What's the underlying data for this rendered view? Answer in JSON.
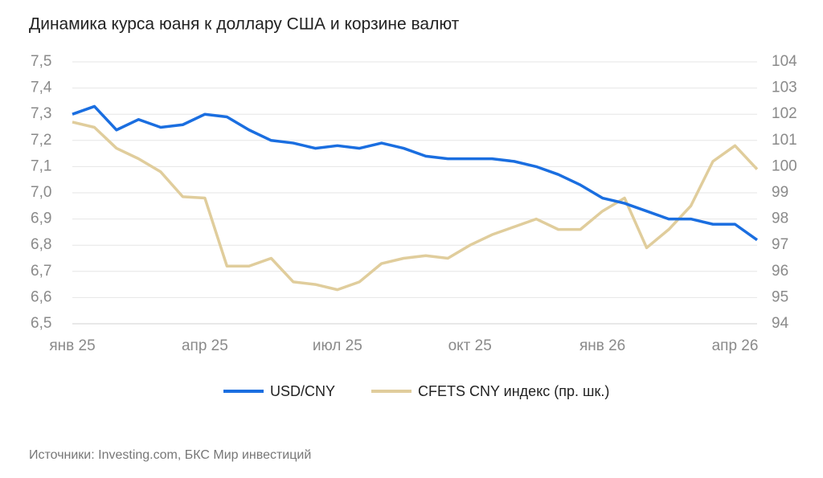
{
  "chart_data": {
    "type": "line",
    "title": "Динамика курса юаня к доллару США и корзине валют",
    "source": "Источники: Investing.com, БКС Мир инвестиций",
    "categories": [
      "янв 25",
      null,
      null,
      null,
      null,
      null,
      "апр 25",
      null,
      null,
      null,
      null,
      null,
      "июл 25",
      null,
      null,
      null,
      null,
      null,
      "окт 25",
      null,
      null,
      null,
      null,
      null,
      "янв 26",
      null,
      null,
      null,
      null,
      null,
      "апр 26",
      null
    ],
    "series": [
      {
        "name": "USD/CNY",
        "color": "#1a6ee0",
        "values": [
          7.3,
          7.33,
          7.24,
          7.28,
          7.25,
          7.26,
          7.3,
          7.29,
          7.24,
          7.2,
          7.19,
          7.17,
          7.18,
          7.17,
          7.19,
          7.17,
          7.14,
          7.13,
          7.13,
          7.13,
          7.12,
          7.1,
          7.07,
          7.03,
          6.98,
          6.96,
          6.93,
          6.9,
          6.9,
          6.88,
          6.88,
          6.82
        ]
      },
      {
        "name": "CFETS CNY индекс (пр. шк.)",
        "color": "#e0cd9c",
        "axis": "y2",
        "values": [
          101.7,
          101.5,
          100.7,
          100.3,
          99.8,
          98.85,
          98.8,
          96.2,
          96.2,
          96.5,
          95.6,
          95.5,
          95.3,
          95.6,
          96.3,
          96.5,
          96.6,
          96.5,
          97.0,
          97.4,
          97.7,
          98.0,
          97.6,
          97.6,
          98.3,
          98.8,
          96.9,
          97.6,
          98.5,
          100.2,
          100.8,
          99.9
        ]
      }
    ],
    "ylim": [
      6.5,
      7.5
    ],
    "yticks": [
      {
        "value": 6.5,
        "label": "6,5"
      },
      {
        "value": 6.6,
        "label": "6,6"
      },
      {
        "value": 6.7,
        "label": "6,7"
      },
      {
        "value": 6.8,
        "label": "6,8"
      },
      {
        "value": 6.9,
        "label": "6,9"
      },
      {
        "value": 7.0,
        "label": "7,0"
      },
      {
        "value": 7.1,
        "label": "7,1"
      },
      {
        "value": 7.2,
        "label": "7,2"
      },
      {
        "value": 7.3,
        "label": "7,3"
      },
      {
        "value": 7.4,
        "label": "7,4"
      },
      {
        "value": 7.5,
        "label": "7,5"
      }
    ],
    "y2lim": [
      94,
      104
    ],
    "y2ticks": [
      94,
      95,
      96,
      97,
      98,
      99,
      100,
      101,
      102,
      103,
      104
    ],
    "grid": true,
    "legend": "bottom"
  }
}
